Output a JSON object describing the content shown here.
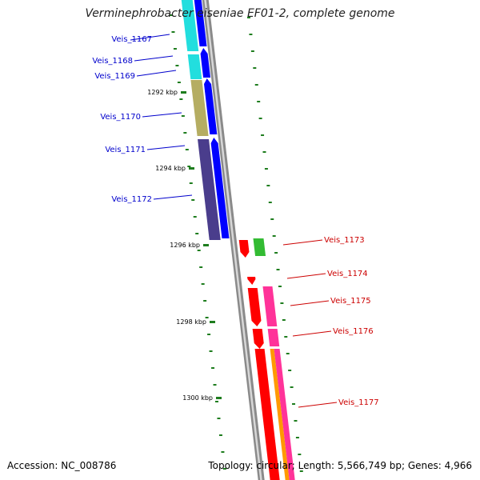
{
  "title": "Verminephrobacter eiseniae EF01-2, complete genome",
  "accession": "Accession: NC_008786",
  "summary": "Topology: circular; Length: 5,566,749 bp; Genes: 4,966",
  "colors": {
    "backbone": "#8a8a8a",
    "tick": "#1e7d1e",
    "label_left": "#0000cc",
    "label_right": "#cc0000"
  },
  "scale_labels": [
    "1292 kbp",
    "1294 kbp",
    "1296 kbp",
    "1298 kbp",
    "1300 kbp"
  ],
  "genes": [
    {
      "name": "Veis_1167",
      "color": "#0000ff",
      "side": "left"
    },
    {
      "name": "Veis_1168",
      "color": "#0000ff",
      "side": "left"
    },
    {
      "name": "Veis_1169",
      "color": "#0000ff",
      "side": "left"
    },
    {
      "name": "Veis_1170",
      "color": "#0000ff",
      "side": "left"
    },
    {
      "name": "Veis_1171",
      "color": "#0000ff",
      "side": "left"
    },
    {
      "name": "Veis_1172",
      "color": "#0000ff",
      "side": "left"
    },
    {
      "name": "Veis_1173",
      "color": "#ff0000",
      "side": "right"
    },
    {
      "name": "Veis_1174",
      "color": "#ff0000",
      "side": "right"
    },
    {
      "name": "Veis_1175",
      "color": "#ff0000",
      "side": "right"
    },
    {
      "name": "Veis_1176",
      "color": "#ff0000",
      "side": "right"
    },
    {
      "name": "Veis_1177",
      "color": "#ff0000",
      "side": "right"
    }
  ]
}
